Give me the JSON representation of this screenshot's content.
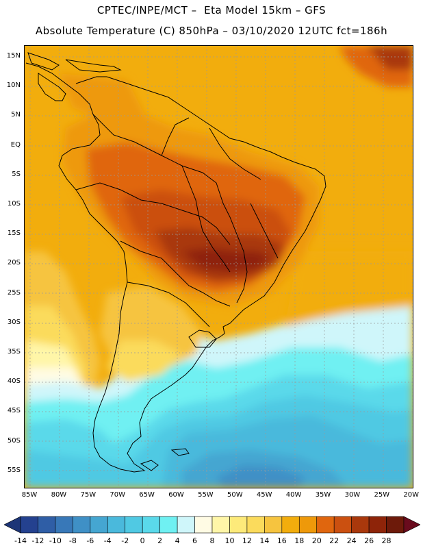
{
  "title_line1": "CPTEC/INPE/MCT –  Eta Model 15km – GFS",
  "title_line2": "Absolute Temperature (C) 850hPa – 03/10/2020 12UTC fct=186h",
  "lat_labels": [
    "15N",
    "10N",
    "5N",
    "EQ",
    "5S",
    "10S",
    "15S",
    "20S",
    "25S",
    "30S",
    "35S",
    "40S",
    "45S",
    "50S",
    "55S"
  ],
  "lon_labels": [
    "85W",
    "80W",
    "75W",
    "70W",
    "65W",
    "60W",
    "55W",
    "50W",
    "45W",
    "40W",
    "35W",
    "30W",
    "25W",
    "20W"
  ],
  "colorbar": {
    "labels": [
      "-14",
      "-12",
      "-10",
      "-8",
      "-6",
      "-4",
      "-2",
      "0",
      "2",
      "4",
      "6",
      "8",
      "10",
      "12",
      "14",
      "16",
      "18",
      "20",
      "22",
      "24",
      "26",
      "28"
    ],
    "colors": [
      "#24418f",
      "#2f5ea6",
      "#3878b8",
      "#3f90c6",
      "#45a6d1",
      "#4ab9dc",
      "#50c9e3",
      "#5ad9ea",
      "#6ff0f2",
      "#cff6fa",
      "#fffbe4",
      "#fff6a8",
      "#fdea7a",
      "#fbdb5c",
      "#f6c43f",
      "#f2ad0d",
      "#ee990a",
      "#e0660e",
      "#cb5010",
      "#a9380c",
      "#8e2409",
      "#6d1a0a"
    ],
    "left_arrow_color": "#1d3577",
    "right_arrow_color": "#6a0b1d"
  },
  "map_colors": {
    "ocean_cold": "#3f90c6",
    "land_hot": "#a9380c"
  }
}
